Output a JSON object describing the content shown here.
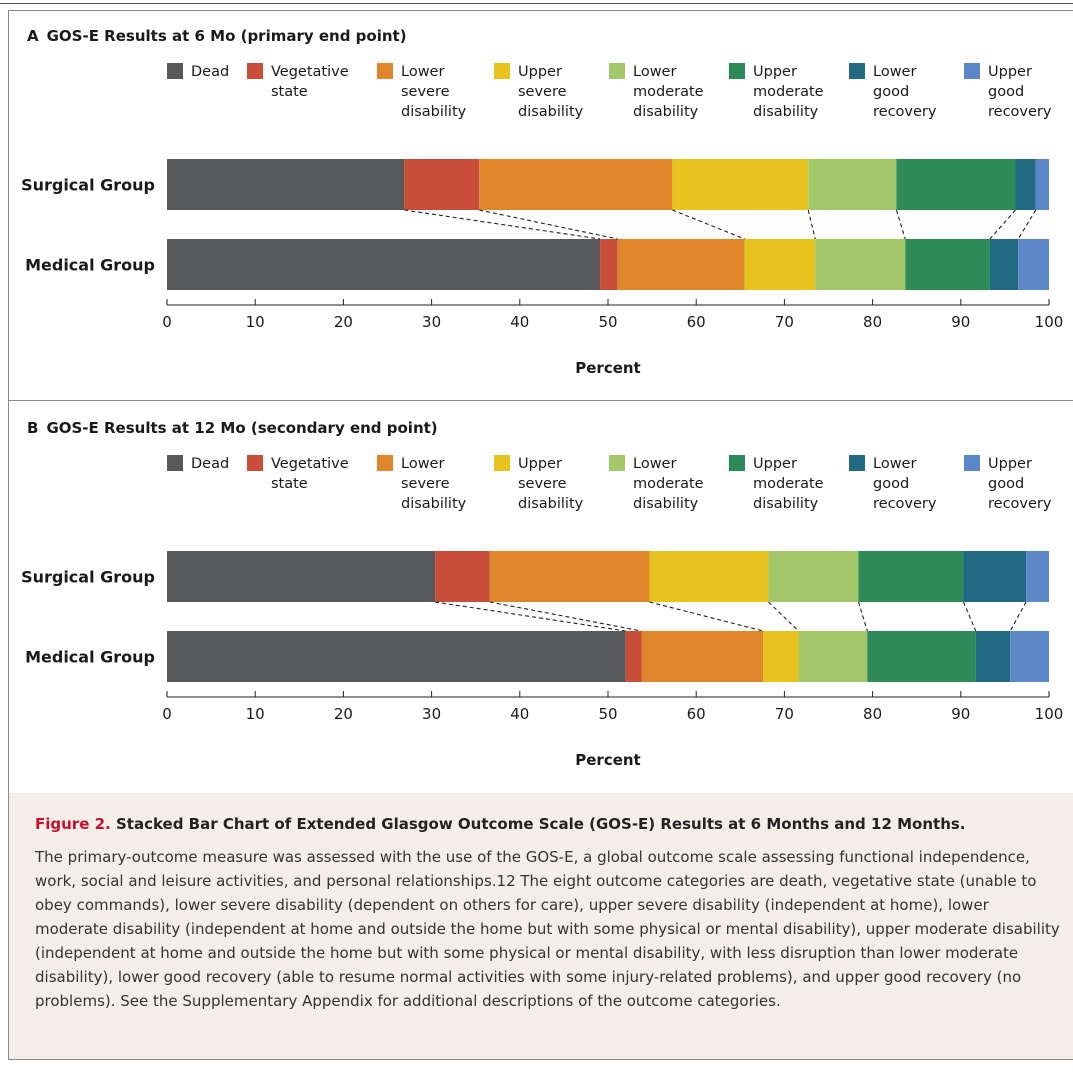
{
  "colors": [
    "#58595b",
    "#c84e3a",
    "#e0862a",
    "#e8c21e",
    "#a4c76a",
    "#2e8b57",
    "#226a82",
    "#5b87c6"
  ],
  "legend": [
    "Dead",
    "Vegetative\nstate",
    "Lower\nsevere\ndisability",
    "Upper\nsevere\ndisability",
    "Lower\nmoderate\ndisability",
    "Upper\nmoderate\ndisability",
    "Lower\ngood\nrecovery",
    "Upper\ngood\nrecovery"
  ],
  "panel_a": {
    "letter": "A",
    "title": "GOS-E Results at 6 Mo (primary end point)"
  },
  "panel_b": {
    "letter": "B",
    "title": "GOS-E Results at 12 Mo (secondary end point)"
  },
  "caption": {
    "figure": "Figure 2.",
    "title": "Stacked Bar Chart of Extended Glasgow Outcome Scale (GOS-E) Results at 6 Months and 12 Months.",
    "body": "The primary-outcome measure was assessed with the use of the GOS-E, a global outcome scale assessing functional independence, work, social and leisure activities, and personal relationships.12 The eight outcome categories are death, vegetative state (unable to obey commands), lower severe disability (dependent on others for care), upper severe disability (independent at home), lower moderate disability (independent at home and outside the home but with some physical or mental disability), upper moderate disability (independent at home and outside the home but with some physical or mental disability, with less disruption than lower moderate disability), lower good recovery (able to resume normal activities with some injury-related problems), and upper good recovery (no problems). See the Supplementary Appendix for additional descriptions of the outcome categories."
  },
  "chart_data": [
    {
      "type": "bar",
      "orientation": "horizontal",
      "stacked": true,
      "title": "GOS-E Results at 6 Mo (primary end point)",
      "xlabel": "Percent",
      "xlim": [
        0,
        100
      ],
      "xticks": [
        0,
        10,
        20,
        30,
        40,
        50,
        60,
        70,
        80,
        90,
        100
      ],
      "categories": [
        "Surgical Group",
        "Medical Group"
      ],
      "series": [
        {
          "name": "Dead",
          "values": [
            26.9,
            49.1
          ]
        },
        {
          "name": "Vegetative state",
          "values": [
            8.5,
            2.0
          ]
        },
        {
          "name": "Lower severe disability",
          "values": [
            21.9,
            14.4
          ]
        },
        {
          "name": "Upper severe disability",
          "values": [
            15.4,
            8.0
          ]
        },
        {
          "name": "Lower moderate disability",
          "values": [
            10.0,
            10.2
          ]
        },
        {
          "name": "Upper moderate disability",
          "values": [
            13.5,
            9.6
          ]
        },
        {
          "name": "Lower good recovery",
          "values": [
            2.3,
            3.2
          ]
        },
        {
          "name": "Upper good recovery",
          "values": [
            1.5,
            3.5
          ]
        }
      ],
      "legend_position": "top"
    },
    {
      "type": "bar",
      "orientation": "horizontal",
      "stacked": true,
      "title": "GOS-E Results at 12 Mo (secondary end point)",
      "xlabel": "Percent",
      "xlim": [
        0,
        100
      ],
      "xticks": [
        0,
        10,
        20,
        30,
        40,
        50,
        60,
        70,
        80,
        90,
        100
      ],
      "categories": [
        "Surgical Group",
        "Medical Group"
      ],
      "series": [
        {
          "name": "Dead",
          "values": [
            30.4,
            52.0
          ]
        },
        {
          "name": "Vegetative state",
          "values": [
            6.2,
            1.8
          ]
        },
        {
          "name": "Lower severe disability",
          "values": [
            18.1,
            13.8
          ]
        },
        {
          "name": "Upper severe disability",
          "values": [
            13.5,
            4.0
          ]
        },
        {
          "name": "Lower moderate disability",
          "values": [
            10.2,
            7.8
          ]
        },
        {
          "name": "Upper moderate disability",
          "values": [
            11.9,
            12.3
          ]
        },
        {
          "name": "Lower good recovery",
          "values": [
            7.1,
            3.9
          ]
        },
        {
          "name": "Upper good recovery",
          "values": [
            2.6,
            4.4
          ]
        }
      ],
      "legend_position": "top"
    }
  ]
}
